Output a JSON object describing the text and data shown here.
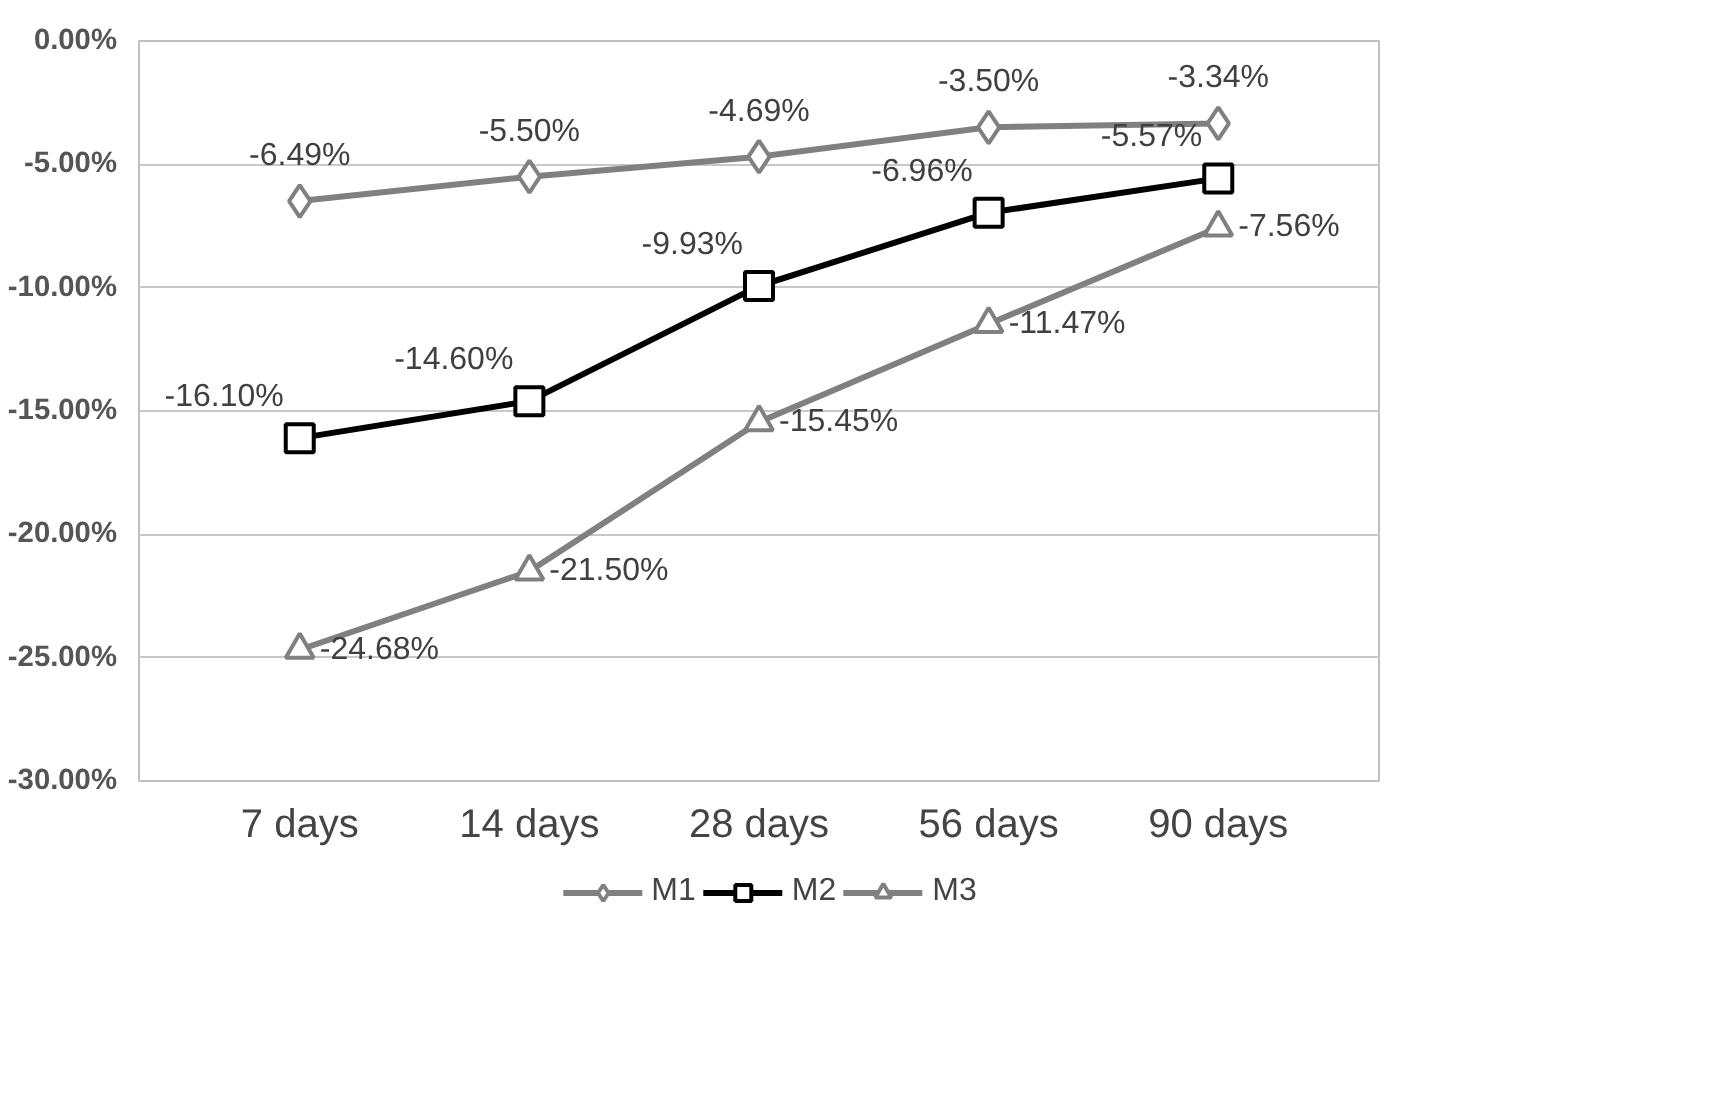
{
  "chart_data": {
    "type": "line",
    "categories": [
      "7 days",
      "14 days",
      "28 days",
      "56 days",
      "90 days"
    ],
    "series": [
      {
        "name": "M1",
        "color": "#808080",
        "marker": "diamond",
        "values": [
          -6.49,
          -5.5,
          -4.69,
          -3.5,
          -3.34
        ],
        "value_labels": [
          "-6.49%",
          "-5.50%",
          "-4.69%",
          "-3.50%",
          "-3.34%"
        ]
      },
      {
        "name": "M2",
        "color": "#000000",
        "marker": "square",
        "values": [
          -16.1,
          -14.6,
          -9.93,
          -6.96,
          -5.57
        ],
        "value_labels": [
          "-16.10%",
          "-14.60%",
          "-9.93%",
          "-6.96%",
          "-5.57%"
        ]
      },
      {
        "name": "M3",
        "color": "#808080",
        "marker": "triangle",
        "values": [
          -24.68,
          -21.5,
          -15.45,
          -11.47,
          -7.56
        ],
        "value_labels": [
          "-24.68%",
          "-21.50%",
          "-15.45%",
          "-11.47%",
          "-7.56%"
        ]
      }
    ],
    "ylim": [
      -30,
      0
    ],
    "yticks": [
      {
        "value": 0,
        "label": "0.00%"
      },
      {
        "value": -5,
        "label": "-5.00%"
      },
      {
        "value": -10,
        "label": "-10.00%"
      },
      {
        "value": -15,
        "label": "-15.00%"
      },
      {
        "value": -20,
        "label": "-20.00%"
      },
      {
        "value": -25,
        "label": "-25.00%"
      },
      {
        "value": -30,
        "label": "-30.00%"
      }
    ],
    "grid": "y",
    "legend": "bottom"
  }
}
